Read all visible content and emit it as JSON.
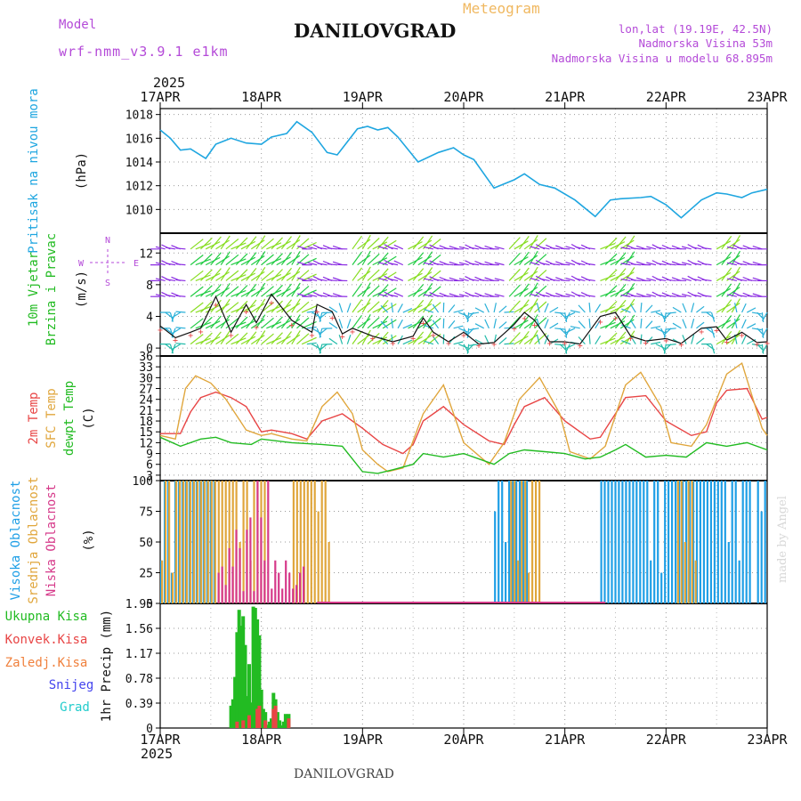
{
  "header": {
    "model_label": "Model",
    "model_name": "wrf-nmm_v3.9.1 e1km",
    "title": "DANILOVGRAD",
    "meteogram_label": "Meteogram",
    "coords": "lon,lat (19.19E, 42.5N)",
    "elevation": "Nadmorska Visina 53m",
    "model_elevation": "Nadmorska Visina u modelu 68.895m",
    "year": "2025",
    "footer_title": "DANILOVGRAD",
    "credit": "made by Angel"
  },
  "colors": {
    "pressure": "#1fa6e0",
    "temp2m": "#e84545",
    "sfc_temp": "#e0a63c",
    "dewpt": "#22bb22",
    "high_cloud": "#1f9fe6",
    "mid_cloud": "#e0a63c",
    "low_cloud": "#d63a8a",
    "precip_total": "#22bb22",
    "precip_conv": "#e84545",
    "precip_frz": "#f0803c",
    "snow": "#4444ee",
    "hail": "#22cccc",
    "wind_label": "#22bb22",
    "purple": "#b44ad8"
  },
  "chart_data": [
    {
      "type": "line",
      "panel": "pressure",
      "x_ticks": [
        "17APR",
        "18APR",
        "19APR",
        "20APR",
        "21APR",
        "22APR",
        "23APR"
      ],
      "ylabel": [
        "Pritisak na nivou mora",
        "(hPa)"
      ],
      "ylim": [
        1008,
        1018.5
      ],
      "y_ticks": [
        1010,
        1012,
        1014,
        1016,
        1018
      ],
      "grid": true,
      "series": [
        {
          "x": [
            0,
            0.1,
            0.2,
            0.3,
            0.45,
            0.55,
            0.7,
            0.85,
            1.0,
            1.1,
            1.25,
            1.35,
            1.5,
            1.65,
            1.75,
            1.95,
            2.05,
            2.15,
            2.25,
            2.35,
            2.55,
            2.75,
            2.9,
            3.0,
            3.1,
            3.3,
            3.5,
            3.6,
            3.75,
            3.9,
            4.1,
            4.3,
            4.45,
            4.55,
            4.75,
            4.85,
            5.0,
            5.15,
            5.35,
            5.5,
            5.6,
            5.75,
            5.85,
            6.0
          ],
          "values": [
            1016.7,
            1016.0,
            1015.0,
            1015.1,
            1014.3,
            1015.5,
            1016.0,
            1015.6,
            1015.5,
            1016.1,
            1016.4,
            1017.4,
            1016.5,
            1014.8,
            1014.6,
            1016.8,
            1017.0,
            1016.7,
            1016.9,
            1016.1,
            1014.0,
            1014.8,
            1015.2,
            1014.6,
            1014.2,
            1011.8,
            1012.5,
            1013.0,
            1012.1,
            1011.8,
            1010.8,
            1009.4,
            1010.8,
            1010.9,
            1011.0,
            1011.1,
            1010.4,
            1009.3,
            1010.8,
            1011.4,
            1011.3,
            1011.0,
            1011.4,
            1011.7
          ]
        }
      ]
    },
    {
      "type": "line",
      "panel": "wind",
      "ylabel": [
        "10m Vjetar",
        "Brzina i Pravac",
        "(m/s)"
      ],
      "ylim": [
        -1,
        14.5
      ],
      "y_ticks": [
        0,
        4,
        8,
        12
      ],
      "compass": [
        "N",
        "S",
        "W",
        "E"
      ],
      "grid": true,
      "series": [
        {
          "name": "speed",
          "x": [
            0,
            0.15,
            0.3,
            0.4,
            0.55,
            0.7,
            0.85,
            0.95,
            1.1,
            1.3,
            1.5,
            1.55,
            1.7,
            1.8,
            1.9,
            2.1,
            2.3,
            2.5,
            2.6,
            2.7,
            2.85,
            3.0,
            3.15,
            3.3,
            3.5,
            3.6,
            3.7,
            3.85,
            4.0,
            4.15,
            4.35,
            4.5,
            4.65,
            4.8,
            5.0,
            5.15,
            5.35,
            5.5,
            5.6,
            5.75,
            5.9,
            6.0
          ],
          "values": [
            2.8,
            1.3,
            2.0,
            2.5,
            6.5,
            2.0,
            5.5,
            3.2,
            6.8,
            3.5,
            2.0,
            5.5,
            4.6,
            1.8,
            2.5,
            1.5,
            0.8,
            1.5,
            3.8,
            2.0,
            0.8,
            2.0,
            0.5,
            0.7,
            3.0,
            4.5,
            3.5,
            0.8,
            0.8,
            0.5,
            4.0,
            4.5,
            1.5,
            0.9,
            1.2,
            0.6,
            2.5,
            2.7,
            1.0,
            2.0,
            0.7,
            0.8
          ]
        }
      ]
    },
    {
      "type": "line",
      "panel": "temperature",
      "ylabel": [
        "2m Temp",
        "SFC Temp",
        "dewpt Temp",
        "(C)"
      ],
      "ylim": [
        1.5,
        36
      ],
      "y_ticks": [
        3,
        6,
        9,
        12,
        15,
        18,
        21,
        24,
        27,
        30,
        33,
        36
      ],
      "grid": true,
      "series": [
        {
          "name": "2m Temp",
          "x": [
            0,
            0.2,
            0.3,
            0.4,
            0.55,
            0.7,
            0.85,
            1.0,
            1.1,
            1.3,
            1.45,
            1.6,
            1.8,
            2.0,
            2.2,
            2.4,
            2.5,
            2.6,
            2.8,
            3.0,
            3.25,
            3.4,
            3.5,
            3.6,
            3.8,
            4.0,
            4.25,
            4.35,
            4.5,
            4.6,
            4.8,
            5.0,
            5.25,
            5.4,
            5.5,
            5.6,
            5.8,
            5.95,
            6.0
          ],
          "values": [
            14.5,
            14.5,
            20.5,
            24.5,
            26.0,
            24.5,
            22.0,
            15.0,
            15.5,
            14.5,
            13.0,
            18.0,
            20.0,
            16.0,
            11.5,
            9.0,
            11.5,
            18.0,
            22.0,
            17.0,
            12.5,
            11.5,
            17.0,
            22.0,
            24.5,
            18.0,
            13.0,
            13.5,
            20.0,
            24.5,
            25.0,
            18.0,
            14.0,
            15.0,
            23.0,
            26.5,
            27.0,
            18.5,
            19.0
          ]
        },
        {
          "name": "SFC Temp",
          "x": [
            0,
            0.15,
            0.25,
            0.35,
            0.5,
            0.65,
            0.85,
            1.0,
            1.1,
            1.3,
            1.45,
            1.6,
            1.75,
            1.9,
            2.0,
            2.15,
            2.25,
            2.4,
            2.6,
            2.8,
            3.0,
            3.25,
            3.4,
            3.55,
            3.75,
            3.95,
            4.05,
            4.25,
            4.4,
            4.6,
            4.75,
            4.95,
            5.05,
            5.25,
            5.4,
            5.6,
            5.75,
            5.95,
            6.0
          ],
          "values": [
            14.0,
            13.0,
            27.0,
            30.5,
            28.5,
            24.0,
            15.5,
            14.0,
            14.5,
            13.0,
            12.5,
            22.0,
            26.0,
            20.0,
            10.0,
            6.0,
            4.0,
            5.0,
            20.0,
            28.0,
            12.0,
            6.0,
            12.0,
            24.0,
            30.0,
            20.0,
            9.5,
            7.5,
            11.0,
            28.0,
            31.5,
            22.0,
            12.0,
            11.0,
            17.0,
            31.0,
            34.0,
            16.0,
            14.0
          ]
        },
        {
          "name": "dewpt Temp",
          "x": [
            0,
            0.2,
            0.4,
            0.55,
            0.7,
            0.9,
            1.0,
            1.3,
            1.6,
            1.8,
            2.0,
            2.15,
            2.3,
            2.5,
            2.6,
            2.8,
            3.0,
            3.3,
            3.45,
            3.6,
            3.8,
            4.0,
            4.2,
            4.35,
            4.5,
            4.6,
            4.8,
            5.0,
            5.2,
            5.4,
            5.6,
            5.8,
            6.0
          ],
          "values": [
            13.5,
            11.0,
            13.0,
            13.5,
            12.0,
            11.5,
            13.0,
            12.0,
            11.5,
            11.0,
            4.0,
            3.5,
            4.5,
            6.0,
            9.0,
            8.0,
            9.0,
            6.0,
            9.0,
            10.0,
            9.5,
            9.0,
            7.5,
            8.0,
            10.0,
            11.5,
            8.0,
            8.5,
            8.0,
            12.0,
            11.0,
            12.0,
            10.0
          ]
        }
      ]
    },
    {
      "type": "bar",
      "panel": "cloud",
      "ylabel": [
        "Visoka Oblacnost",
        "Srednja Oblacnost",
        "Niska Oblacnost",
        "(%)"
      ],
      "ylim": [
        0,
        100
      ],
      "y_ticks": [
        0,
        25,
        50,
        75,
        100
      ],
      "grid": true,
      "series": [
        {
          "name": "Visoka Oblacnost",
          "from_to": [
            [
              0.0,
              0.55
            ],
            [
              3.3,
              3.65
            ],
            [
              4.35,
              5.85
            ],
            [
              5.9,
              6.0
            ]
          ],
          "values_hint": "mostly 100"
        },
        {
          "name": "Srednja Oblacnost",
          "from_to": [
            [
              0.0,
              1.05
            ],
            [
              1.3,
              1.65
            ],
            [
              3.45,
              3.75
            ],
            [
              5.1,
              5.3
            ]
          ],
          "values_hint": "mostly 100"
        },
        {
          "name": "Niska Oblacnost",
          "from_to": [
            [
              0.55,
              1.4
            ]
          ],
          "values_hint": "10-100"
        }
      ]
    },
    {
      "type": "bar",
      "panel": "precip",
      "ylabel": [
        "1hr Precip (mm)"
      ],
      "legend": [
        "Ukupna Kisa",
        "Konvek.Kisa",
        "Zaledj.Kisa",
        "Snijeg",
        "Grad"
      ],
      "ylim": [
        0,
        1.95
      ],
      "y_ticks": [
        0,
        0.39,
        0.78,
        1.17,
        1.56,
        1.95
      ],
      "grid": true,
      "series": [
        {
          "name": "Ukupna Kisa",
          "x": [
            0.7,
            0.72,
            0.74,
            0.76,
            0.78,
            0.8,
            0.82,
            0.84,
            0.86,
            0.88,
            0.9,
            0.92,
            0.94,
            0.96,
            0.98,
            1.0,
            1.02,
            1.04,
            1.06,
            1.08,
            1.1,
            1.12,
            1.14,
            1.16,
            1.18,
            1.2,
            1.22,
            1.24,
            1.27
          ],
          "values": [
            0.35,
            0.45,
            0.8,
            1.5,
            1.85,
            1.6,
            1.75,
            1.3,
            0.5,
            1.0,
            0.4,
            1.9,
            1.88,
            1.7,
            1.45,
            0.6,
            0.3,
            0.25,
            0.05,
            0.1,
            0.15,
            0.55,
            0.45,
            0.25,
            0.12,
            0.04,
            0.1,
            0.22,
            0.22
          ]
        },
        {
          "name": "Konvek.Kisa",
          "x": [
            0.76,
            0.82,
            0.88,
            0.96,
            0.98,
            1.04,
            1.12,
            1.14,
            1.27
          ],
          "values": [
            0.1,
            0.12,
            0.2,
            0.3,
            0.35,
            0.12,
            0.3,
            0.35,
            0.15
          ]
        }
      ]
    }
  ]
}
